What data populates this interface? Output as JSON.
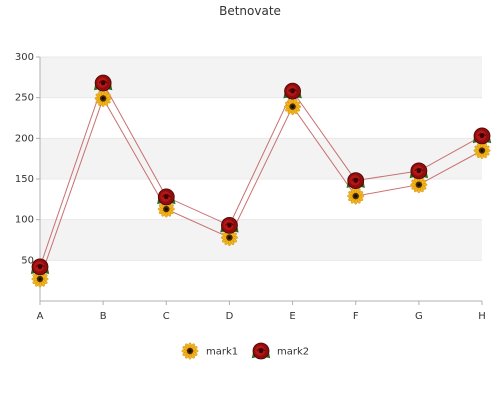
{
  "chart_data": {
    "type": "line",
    "title": "Betnovate",
    "categories": [
      "A",
      "B",
      "C",
      "D",
      "E",
      "F",
      "G",
      "H"
    ],
    "ylim": [
      0,
      300
    ],
    "yticks": [
      50,
      100,
      150,
      200,
      250,
      300
    ],
    "grid": true,
    "legend_position": "bottom",
    "series": [
      {
        "name": "mark1",
        "marker": "sunflower-icon",
        "color": "#f2b21a",
        "values": [
          27,
          249,
          113,
          78,
          239,
          129,
          143,
          185
        ]
      },
      {
        "name": "mark2",
        "marker": "rose-icon",
        "color": "#b01212",
        "values": [
          42,
          268,
          128,
          93,
          258,
          148,
          160,
          203
        ]
      }
    ]
  }
}
